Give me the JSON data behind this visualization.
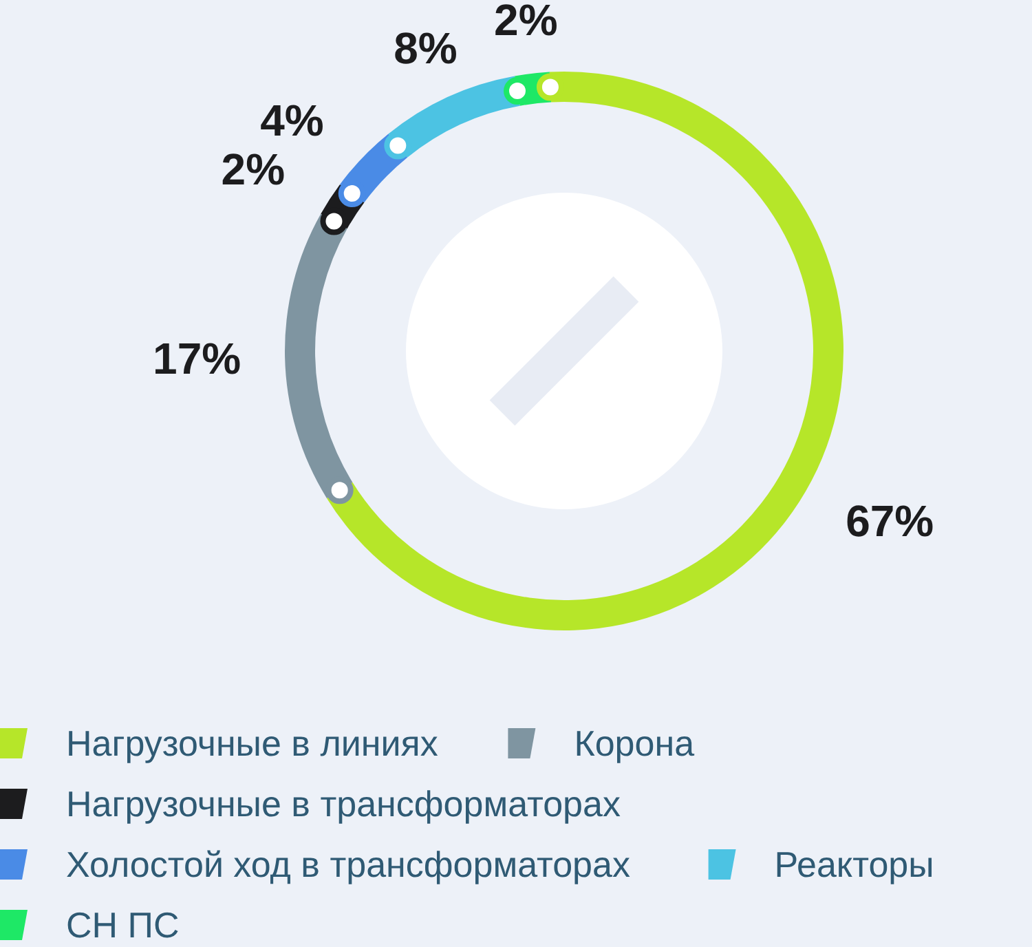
{
  "chart_data": {
    "type": "donut",
    "categories": [
      "Нагрузочные в линиях",
      "Корона",
      "Нагрузочные в трансформаторах",
      "Холостой ход в трансформаторах",
      "Реакторы",
      "СН ПС"
    ],
    "values": [
      67,
      17,
      2,
      4,
      8,
      2
    ],
    "colors": [
      "#b6e629",
      "#7f95a1",
      "#1c1c1e",
      "#4a8be6",
      "#4cc3e3",
      "#1ee866"
    ],
    "value_labels": [
      "67%",
      "17%",
      "2%",
      "4%",
      "8%",
      "2%"
    ],
    "legend": "bottom"
  }
}
